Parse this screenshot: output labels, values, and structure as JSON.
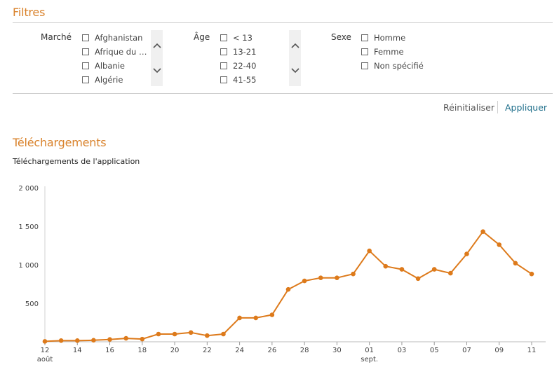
{
  "filters": {
    "title": "Filtres",
    "market": {
      "label": "Marché",
      "options": [
        "Afghanistan",
        "Afrique du S...",
        "Albanie",
        "Algérie"
      ]
    },
    "age": {
      "label": "Âge",
      "options": [
        "< 13",
        "13-21",
        "22-40",
        "41-55"
      ]
    },
    "sex": {
      "label": "Sexe",
      "options": [
        "Homme",
        "Femme",
        "Non spécifié"
      ]
    },
    "icons": {
      "checkbox": "checkbox-unchecked-icon",
      "scroll_up": "chevron-up-icon",
      "scroll_down": "chevron-down-icon"
    }
  },
  "actions": {
    "reset_label": "Réinitialiser",
    "apply_label": "Appliquer"
  },
  "downloads": {
    "title": "Téléchargements",
    "chart_title": "Téléchargements de l'application"
  },
  "colors": {
    "accent": "#d9822b",
    "series": "#dd7a1b",
    "link": "#1f6f8b"
  },
  "chart_data": {
    "type": "line",
    "title": "Téléchargements de l'application",
    "xlabel": "",
    "ylabel": "",
    "ylim": [
      0,
      2000
    ],
    "yticks": [
      500,
      1000,
      1500,
      2000
    ],
    "ytick_labels": [
      "500",
      "1 000",
      "1 500",
      "2 000"
    ],
    "x": [
      "12 août",
      "13 août",
      "14 août",
      "15 août",
      "16 août",
      "17 août",
      "18 août",
      "19 août",
      "20 août",
      "21 août",
      "22 août",
      "23 août",
      "24 août",
      "25 août",
      "26 août",
      "27 août",
      "28 août",
      "29 août",
      "30 août",
      "31 août",
      "01 sept.",
      "02 sept.",
      "03 sept.",
      "04 sept.",
      "05 sept.",
      "06 sept.",
      "07 sept.",
      "08 sept.",
      "09 sept.",
      "10 sept.",
      "11 sept."
    ],
    "xtick_labels": [
      {
        "label": "12",
        "sub": "août"
      },
      {
        "label": "14",
        "sub": ""
      },
      {
        "label": "16",
        "sub": ""
      },
      {
        "label": "18",
        "sub": ""
      },
      {
        "label": "20",
        "sub": ""
      },
      {
        "label": "22",
        "sub": ""
      },
      {
        "label": "24",
        "sub": ""
      },
      {
        "label": "26",
        "sub": ""
      },
      {
        "label": "28",
        "sub": ""
      },
      {
        "label": "30",
        "sub": ""
      },
      {
        "label": "01",
        "sub": "sept."
      },
      {
        "label": "03",
        "sub": ""
      },
      {
        "label": "05",
        "sub": ""
      },
      {
        "label": "07",
        "sub": ""
      },
      {
        "label": "09",
        "sub": ""
      },
      {
        "label": "11",
        "sub": ""
      }
    ],
    "series": [
      {
        "values": [
          5,
          15,
          15,
          20,
          30,
          45,
          35,
          100,
          100,
          120,
          80,
          100,
          310,
          310,
          350,
          680,
          790,
          830,
          830,
          880,
          1180,
          980,
          940,
          820,
          940,
          890,
          1140,
          1430,
          1260,
          1020,
          880
        ]
      }
    ],
    "grid": false,
    "legend": "none"
  }
}
